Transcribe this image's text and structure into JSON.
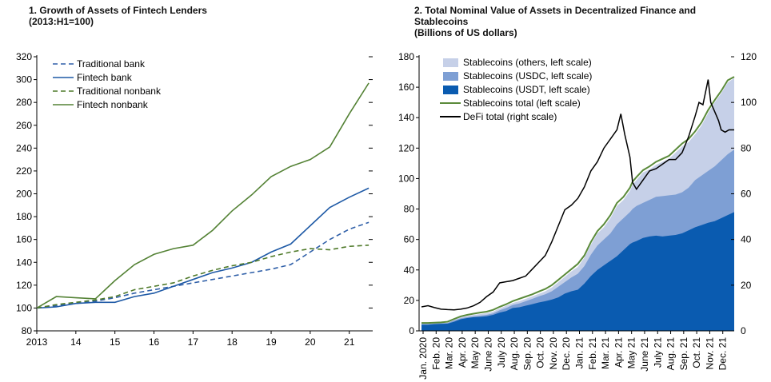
{
  "panels": {
    "left": {
      "title_line1": "1. Growth of Assets of Fintech Lenders",
      "title_line2": "(2013:H1=100)"
    },
    "right": {
      "title_line1": "2. Total Nominal Value of Assets in Decentralized Finance and",
      "title_line2": "Stablecoins",
      "title_line3": "(Billions of US dollars)"
    }
  },
  "colors": {
    "traditional_bank": "#2f5fa8",
    "fintech_bank": "#1f5aa6",
    "traditional_nonbank": "#4f7a2a",
    "fintech_nonbank": "#548235",
    "usdt": "#0a5bb0",
    "usdc": "#7e9fd4",
    "others": "#c6d0e8",
    "stable_total": "#5a8a3a",
    "defi": "#000000"
  },
  "chart_data": [
    {
      "type": "line",
      "title": "1. Growth of Assets of Fintech Lenders (2013:H1=100)",
      "x_ticks": [
        "2013",
        "14",
        "15",
        "16",
        "17",
        "18",
        "19",
        "20",
        "21"
      ],
      "x": [
        2013.0,
        2013.5,
        2014.0,
        2014.5,
        2015.0,
        2015.5,
        2016.0,
        2016.5,
        2017.0,
        2017.5,
        2018.0,
        2018.5,
        2019.0,
        2019.5,
        2020.0,
        2020.5,
        2021.0,
        2021.5
      ],
      "ylim": [
        80,
        320
      ],
      "y_ticks": [
        80,
        100,
        120,
        140,
        160,
        180,
        200,
        220,
        240,
        260,
        280,
        300,
        320
      ],
      "legend_position": "top-left",
      "series": [
        {
          "name": "Traditional bank",
          "style": "dashed",
          "values": [
            100,
            102,
            104,
            106,
            109,
            113,
            116,
            119,
            122,
            125,
            128,
            131,
            134,
            138,
            149,
            160,
            169,
            175
          ]
        },
        {
          "name": "Fintech bank",
          "style": "solid",
          "values": [
            100,
            101,
            104,
            105,
            105,
            110,
            113,
            119,
            125,
            131,
            135,
            140,
            149,
            156,
            172,
            188,
            197,
            205
          ]
        },
        {
          "name": "Traditional nonbank",
          "style": "dashed",
          "values": [
            100,
            103,
            105,
            107,
            110,
            116,
            119,
            122,
            128,
            133,
            137,
            140,
            145,
            149,
            152,
            151,
            154,
            155
          ]
        },
        {
          "name": "Fintech nonbank",
          "style": "solid",
          "values": [
            100,
            110,
            109,
            108,
            124,
            138,
            147,
            152,
            155,
            168,
            185,
            199,
            215,
            224,
            230,
            241,
            270,
            297
          ]
        }
      ]
    },
    {
      "type": "area",
      "title": "2. Total Nominal Value of Assets in Decentralized Finance and Stablecoins (Billions of US dollars)",
      "categories": [
        "Jan. 2020",
        "Feb. 20",
        "Mar. 20",
        "Apr. 20",
        "May 20",
        "June 20",
        "July 20",
        "Aug. 20",
        "Sep. 20",
        "Oct. 20",
        "Nov. 20",
        "Dec. 20",
        "Jan. 21",
        "Feb. 21",
        "Mar. 21",
        "Apr. 21",
        "May 21",
        "June 21",
        "July 21",
        "Aug. 21",
        "Sep. 21",
        "Oct. 21",
        "Nov. 21",
        "Dec. 21"
      ],
      "ylim_left": [
        0,
        180
      ],
      "y_ticks_left": [
        0,
        20,
        40,
        60,
        80,
        100,
        120,
        140,
        160,
        180
      ],
      "ylim_right": [
        0,
        120
      ],
      "y_ticks_right": [
        0,
        20,
        40,
        60,
        80,
        100,
        120
      ],
      "legend_position": "top-left",
      "x": [
        0,
        0.5,
        1,
        1.5,
        2,
        2.5,
        3,
        3.5,
        4,
        4.5,
        5,
        5.5,
        6,
        6.5,
        7,
        7.5,
        8,
        8.5,
        9,
        9.5,
        10,
        10.5,
        11,
        11.5,
        12,
        12.5,
        13,
        13.5,
        14,
        14.5,
        15,
        15.5,
        16,
        16.2,
        16.5,
        17,
        17.5,
        18,
        18.5,
        19,
        19.5,
        20,
        20.5,
        21,
        21.5,
        22,
        22.5,
        23,
        23.5,
        24
      ],
      "series": [
        {
          "name": "Stablecoins (USDT, left scale)",
          "values": [
            4,
            4,
            4.4,
            4.6,
            4.7,
            6,
            7.6,
            8.4,
            9,
            9.2,
            9.6,
            10.5,
            12,
            13,
            15,
            15.5,
            16.5,
            17.5,
            18.6,
            19.5,
            20.5,
            22,
            24.5,
            26,
            27,
            31,
            36,
            40,
            43,
            46,
            49,
            53,
            57,
            58,
            59,
            61,
            62,
            62.5,
            62,
            62.5,
            63,
            64,
            66,
            68,
            69.5,
            71,
            72,
            74,
            76,
            78
          ]
        },
        {
          "name": "Stablecoins (USDC, left scale)",
          "values": [
            4.5,
            4.5,
            4.8,
            5,
            5.2,
            6.8,
            8.2,
            9,
            9.5,
            10,
            10.5,
            11.5,
            13.5,
            15,
            17,
            18,
            19.5,
            21,
            22.6,
            24,
            26,
            29,
            32,
            35,
            37.5,
            42.5,
            50,
            56,
            60,
            64,
            70,
            74,
            78,
            80,
            82,
            84,
            86,
            88,
            88.5,
            89,
            89.5,
            91,
            94,
            99,
            102,
            105,
            108,
            112,
            116,
            119
          ]
        },
        {
          "name": "Stablecoins (others, left scale)",
          "values": [
            4.6,
            4.6,
            4.9,
            5.1,
            5.4,
            7.3,
            9,
            9.8,
            10.5,
            11,
            11.6,
            12.7,
            14.7,
            16.5,
            18.3,
            19.5,
            21,
            22.6,
            24.3,
            26,
            28.5,
            32,
            35.5,
            39,
            42,
            48,
            56.5,
            64,
            68,
            74,
            82,
            86,
            92,
            96,
            99,
            104,
            106,
            109,
            111,
            113,
            117,
            121,
            124,
            129,
            135,
            143,
            150,
            156,
            163,
            166
          ]
        },
        {
          "name": "Stablecoins total (left scale)",
          "values": [
            5.2,
            5.2,
            5.4,
            5.6,
            6,
            7.8,
            9.5,
            10.5,
            11.3,
            12,
            12.6,
            13.8,
            15.8,
            17.5,
            19.5,
            21,
            22.5,
            24,
            25.8,
            27.5,
            30,
            33.5,
            37,
            40.5,
            44,
            49.5,
            58.3,
            65.5,
            70,
            76,
            84,
            88,
            94,
            98,
            101,
            105.5,
            108,
            111,
            113,
            115,
            119,
            123,
            126,
            131,
            137,
            145,
            151.5,
            157.5,
            164.5,
            166.8
          ]
        }
      ],
      "defi": {
        "name": "DeFi total (right scale)",
        "x": [
          0,
          0.5,
          1,
          1.5,
          2,
          2.5,
          3,
          3.5,
          4,
          4.5,
          5,
          5.5,
          6,
          6.5,
          7,
          7.5,
          8,
          8.5,
          9,
          9.5,
          10,
          10.5,
          11,
          11.5,
          12,
          12.5,
          13,
          13.5,
          14,
          14.5,
          15,
          15.3,
          15.6,
          16,
          16.2,
          16.5,
          17,
          17.5,
          18,
          18.5,
          19,
          19.5,
          20,
          20.5,
          21,
          21.3,
          21.6,
          22,
          22.2,
          22.5,
          22.8,
          23,
          23.3,
          23.6,
          24
        ],
        "values": [
          10.5,
          11,
          10.2,
          9.5,
          9.3,
          9.2,
          9.5,
          10,
          11,
          12.5,
          15,
          17,
          21,
          21.5,
          22,
          23,
          24,
          27,
          30,
          33,
          39,
          46,
          53,
          55,
          58,
          63,
          70,
          74,
          80,
          84,
          88,
          95,
          86,
          76,
          65,
          62,
          66,
          70,
          71,
          73,
          75,
          75,
          78,
          85,
          94,
          100,
          99,
          110,
          100,
          96,
          92,
          88,
          87,
          88,
          88
        ]
      }
    }
  ]
}
